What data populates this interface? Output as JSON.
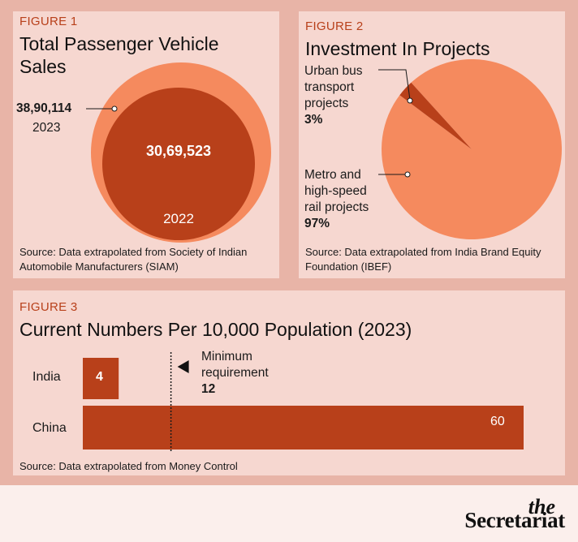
{
  "brand": {
    "the": "the",
    "name": "Secretariat"
  },
  "colors": {
    "light": "#f58a5e",
    "dark": "#b8401a",
    "panel": "#f6d7d0",
    "frame": "#e8b4a7"
  },
  "figure1": {
    "label": "FIGURE 1",
    "title": "Total Passenger Vehicle Sales",
    "source": "Source: Data extrapolated from Society of Indian Automobile Manufacturers (SIAM)",
    "chart_data": {
      "type": "bubble",
      "series": [
        {
          "year_label": "2023",
          "value_label": "38,90,114",
          "value": 3890114,
          "color": "#f58a5e"
        },
        {
          "year_label": "2022",
          "value_label": "30,69,523",
          "value": 3069523,
          "color": "#b8401a"
        }
      ]
    }
  },
  "figure2": {
    "label": "FIGURE 2",
    "title": "Investment In Projects",
    "source": "Source: Data extrapolated from India Brand Equity Foundation (IBEF)",
    "chart_data": {
      "type": "pie",
      "slices": [
        {
          "label": "Urban bus transport projects",
          "label_lines": [
            "Urban bus",
            "transport",
            "projects"
          ],
          "value": 3,
          "value_label": "3%",
          "color": "#b8401a"
        },
        {
          "label": "Metro and high-speed rail projects",
          "label_lines": [
            "Metro and",
            "high-speed",
            "rail projects"
          ],
          "value": 97,
          "value_label": "97%",
          "color": "#f58a5e"
        }
      ]
    }
  },
  "figure3": {
    "label": "FIGURE 3",
    "title": "Current Numbers Per 10,000 Population (2023)",
    "source": "Source: Data extrapolated from Money Control",
    "chart_data": {
      "type": "bar",
      "orientation": "horizontal",
      "categories": [
        "India",
        "China"
      ],
      "values": [
        4,
        60
      ],
      "value_labels": [
        "4",
        "60"
      ],
      "xlim": [
        0,
        60
      ],
      "reference": {
        "value": 12,
        "label_lines": [
          "Minimum",
          "requirement"
        ],
        "value_label": "12"
      },
      "color": "#b8401a"
    }
  }
}
